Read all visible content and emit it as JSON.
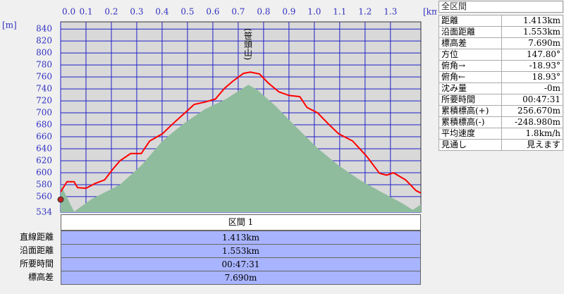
{
  "chart_data": {
    "type": "line",
    "x_label": "[km]",
    "y_label": "[m]",
    "annotation": "(笹頭山)",
    "xlim": [
      0,
      1.42
    ],
    "ylim": [
      534,
      852
    ],
    "xticks": [
      {
        "value": 0,
        "label": "0.0"
      },
      0.1,
      0.2,
      0.3,
      0.4,
      0.5,
      0.6,
      0.7,
      0.8,
      0.9,
      {
        "value": 1,
        "label": "1.0"
      },
      1.1,
      1.2,
      1.3
    ],
    "yticks": [
      534,
      560,
      580,
      600,
      620,
      640,
      660,
      680,
      700,
      720,
      740,
      760,
      780,
      800,
      820,
      840
    ],
    "grid": true,
    "series": [
      {
        "color": "#8fbc9c",
        "area": true,
        "x": [
          0,
          0.053,
          0.122,
          0.178,
          0.234,
          0.318,
          0.401,
          0.485,
          0.568,
          0.652,
          0.707,
          0.74,
          0.776,
          0.846,
          0.929,
          1.013,
          1.096,
          1.179,
          1.263,
          1.346,
          1.388,
          1.42
        ],
        "values": [
          580,
          535,
          556,
          568,
          580,
          612,
          653,
          682,
          706,
          723,
          738,
          747,
          738,
          712,
          676,
          641,
          612,
          588,
          568,
          549,
          538,
          547
        ]
      },
      {
        "color": "#ff0000",
        "area": false,
        "x": [
          0,
          0.025,
          0.053,
          0.067,
          0.1,
          0.136,
          0.173,
          0.206,
          0.234,
          0.276,
          0.318,
          0.351,
          0.401,
          0.443,
          0.49,
          0.526,
          0.568,
          0.61,
          0.646,
          0.679,
          0.721,
          0.748,
          0.784,
          0.818,
          0.86,
          0.901,
          0.943,
          0.971,
          1.013,
          1.054,
          1.096,
          1.151,
          1.207,
          1.257,
          1.285,
          1.312,
          1.36,
          1.401,
          1.42
        ],
        "values": [
          568,
          585,
          585,
          575,
          574,
          582,
          588,
          606,
          620,
          632,
          632,
          653,
          665,
          682,
          700,
          714,
          718,
          723,
          741,
          753,
          766,
          768,
          765,
          750,
          735,
          729,
          727,
          709,
          700,
          682,
          665,
          653,
          627,
          599,
          596,
          600,
          588,
          570,
          566
        ]
      }
    ]
  },
  "summary_panel": {
    "title": "全区間",
    "rows": [
      [
        "距離",
        "1.413km"
      ],
      [
        "沿面距離",
        "1.553km"
      ],
      [
        "標高差",
        "7.690m"
      ],
      [
        "方位",
        "147.80°"
      ],
      [
        "俯角→",
        "-18.93°"
      ],
      [
        "俯角←",
        "18.93°"
      ],
      [
        "沈み量",
        "-0m"
      ],
      [
        "所要時間",
        "00:47:31"
      ],
      [
        "累積標高(+)",
        "256.670m"
      ],
      [
        "累積標高(-)",
        "-248.980m"
      ],
      [
        "平均速度",
        "1.8km/h"
      ],
      [
        "見通し",
        "見えます"
      ]
    ]
  },
  "section_table": {
    "header": "区間 1",
    "rows": [
      [
        "直線距離",
        "1.413km"
      ],
      [
        "沿面距離",
        "1.553km"
      ],
      [
        "所要時間",
        "00:47:31"
      ],
      [
        "標高差",
        "7.690m"
      ]
    ]
  }
}
